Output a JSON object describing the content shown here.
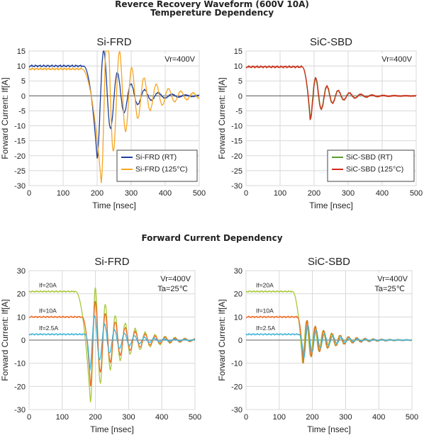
{
  "headings": {
    "top_line1": "Reverce Recovery Waveform (600V 10A)",
    "top_line2": "Tempereture Dependency",
    "middle": "Forward Current Dependency"
  },
  "colors": {
    "rt_blue": "#1f3f9a",
    "hot_orange": "#f5a623",
    "green": "#5a9e2f",
    "red": "#d42a1a",
    "lime": "#a8c93a",
    "cyan": "#3fb4d8",
    "grid": "#d8d8d8",
    "axis_zero": "#808080"
  },
  "chart_data": [
    {
      "type": "line",
      "title": "Si-FRD",
      "xlabel": "Time [nsec]",
      "ylabel": "Forward Current: If[A]",
      "xlim": [
        0,
        500
      ],
      "ylim": [
        -30,
        15
      ],
      "xticks": [
        "0",
        "100",
        "200",
        "300",
        "400",
        "500"
      ],
      "yticks": [
        "15",
        "10",
        "5",
        "0",
        "-5",
        "-10",
        "-15",
        "-20",
        "-25",
        "-30"
      ],
      "annotation": "Vr=400V",
      "legend_position": "bottom-right",
      "grid": true,
      "series": [
        {
          "name": "Si-FRD (RT)",
          "color": "#1f3f9a",
          "i0": 10,
          "t0": 160,
          "t1": 200,
          "peak": -21,
          "f": 40,
          "tau": 60,
          "amp": 6
        },
        {
          "name": "Si-FRD (125°C)",
          "color": "#f5a623",
          "i0": 9,
          "t0": 155,
          "t1": 212,
          "peak": -29,
          "f": 36,
          "tau": 80,
          "amp": 4
        }
      ]
    },
    {
      "type": "line",
      "title": "SiC-SBD",
      "xlabel": "Time [nsec]",
      "ylabel": "Forward Current: If[A]",
      "xlim": [
        0,
        500
      ],
      "ylim": [
        -30,
        15
      ],
      "xticks": [
        "0",
        "100",
        "200",
        "300",
        "400",
        "500"
      ],
      "yticks": [
        "15",
        "10",
        "5",
        "0",
        "-5",
        "-10",
        "-15",
        "-20",
        "-25",
        "-30"
      ],
      "annotation": "Vr=400V",
      "legend_position": "bottom-right",
      "grid": true,
      "series": [
        {
          "name": "SiC-SBD (RT)",
          "color": "#5a9e2f",
          "i0": 9.7,
          "t0": 165,
          "t1": 188,
          "peak": -8,
          "f": 33,
          "tau": 55,
          "amp": 0
        },
        {
          "name": "SiC-SBD (125°C)",
          "color": "#d42a1a",
          "i0": 9.7,
          "t0": 165,
          "t1": 189,
          "peak": -8,
          "f": 33,
          "tau": 55,
          "amp": 0
        }
      ]
    },
    {
      "type": "line",
      "title": "Si-FRD",
      "xlabel": "Time [nsec]",
      "ylabel": "Forward Current: If[A]",
      "xlim": [
        0,
        500
      ],
      "ylim": [
        -30,
        30
      ],
      "xticks": [
        "0",
        "100",
        "200",
        "300",
        "400",
        "500"
      ],
      "yticks": [
        "30",
        "20",
        "10",
        "0",
        "-10",
        "-20",
        "-30"
      ],
      "annotation": "Vr=400V",
      "annotation2": "Ta=25℃",
      "grid": true,
      "series": [
        {
          "name": "If=20A",
          "color": "#a8c93a",
          "i0": 21,
          "t0": 140,
          "t1": 185,
          "peak": -27,
          "f": 30,
          "tau": 80,
          "amp": 3
        },
        {
          "name": "If=10A",
          "color": "#ef6a22",
          "i0": 10,
          "t0": 160,
          "t1": 185,
          "peak": -20,
          "f": 30,
          "tau": 80,
          "amp": 2
        },
        {
          "name": "If=2.5A",
          "color": "#3fb4d8",
          "i0": 2.5,
          "t0": 170,
          "t1": 183,
          "peak": -13,
          "f": 30,
          "tau": 70,
          "amp": 1.5
        }
      ]
    },
    {
      "type": "line",
      "title": "SiC-SBD",
      "xlabel": "Time [nsec]",
      "ylabel": "Forward Current: If[A]",
      "xlim": [
        0,
        500
      ],
      "ylim": [
        -30,
        30
      ],
      "xticks": [
        "0",
        "100",
        "200",
        "300",
        "400",
        "500"
      ],
      "yticks": [
        "30",
        "20",
        "10",
        "0",
        "-10",
        "-20",
        "-30"
      ],
      "annotation": "Vr=400V",
      "annotation2": "Ta=25℃",
      "grid": true,
      "series": [
        {
          "name": "If=20A",
          "color": "#a8c93a",
          "i0": 21,
          "t0": 140,
          "t1": 170,
          "peak": -10,
          "f": 25,
          "tau": 70,
          "amp": 2
        },
        {
          "name": "If=10A",
          "color": "#ef6a22",
          "i0": 10,
          "t0": 155,
          "t1": 172,
          "peak": -10,
          "f": 25,
          "tau": 70,
          "amp": 1.5
        },
        {
          "name": "If=2.5A",
          "color": "#3fb4d8",
          "i0": 2.5,
          "t0": 160,
          "t1": 174,
          "peak": -8,
          "f": 25,
          "tau": 60,
          "amp": 1
        }
      ]
    }
  ]
}
